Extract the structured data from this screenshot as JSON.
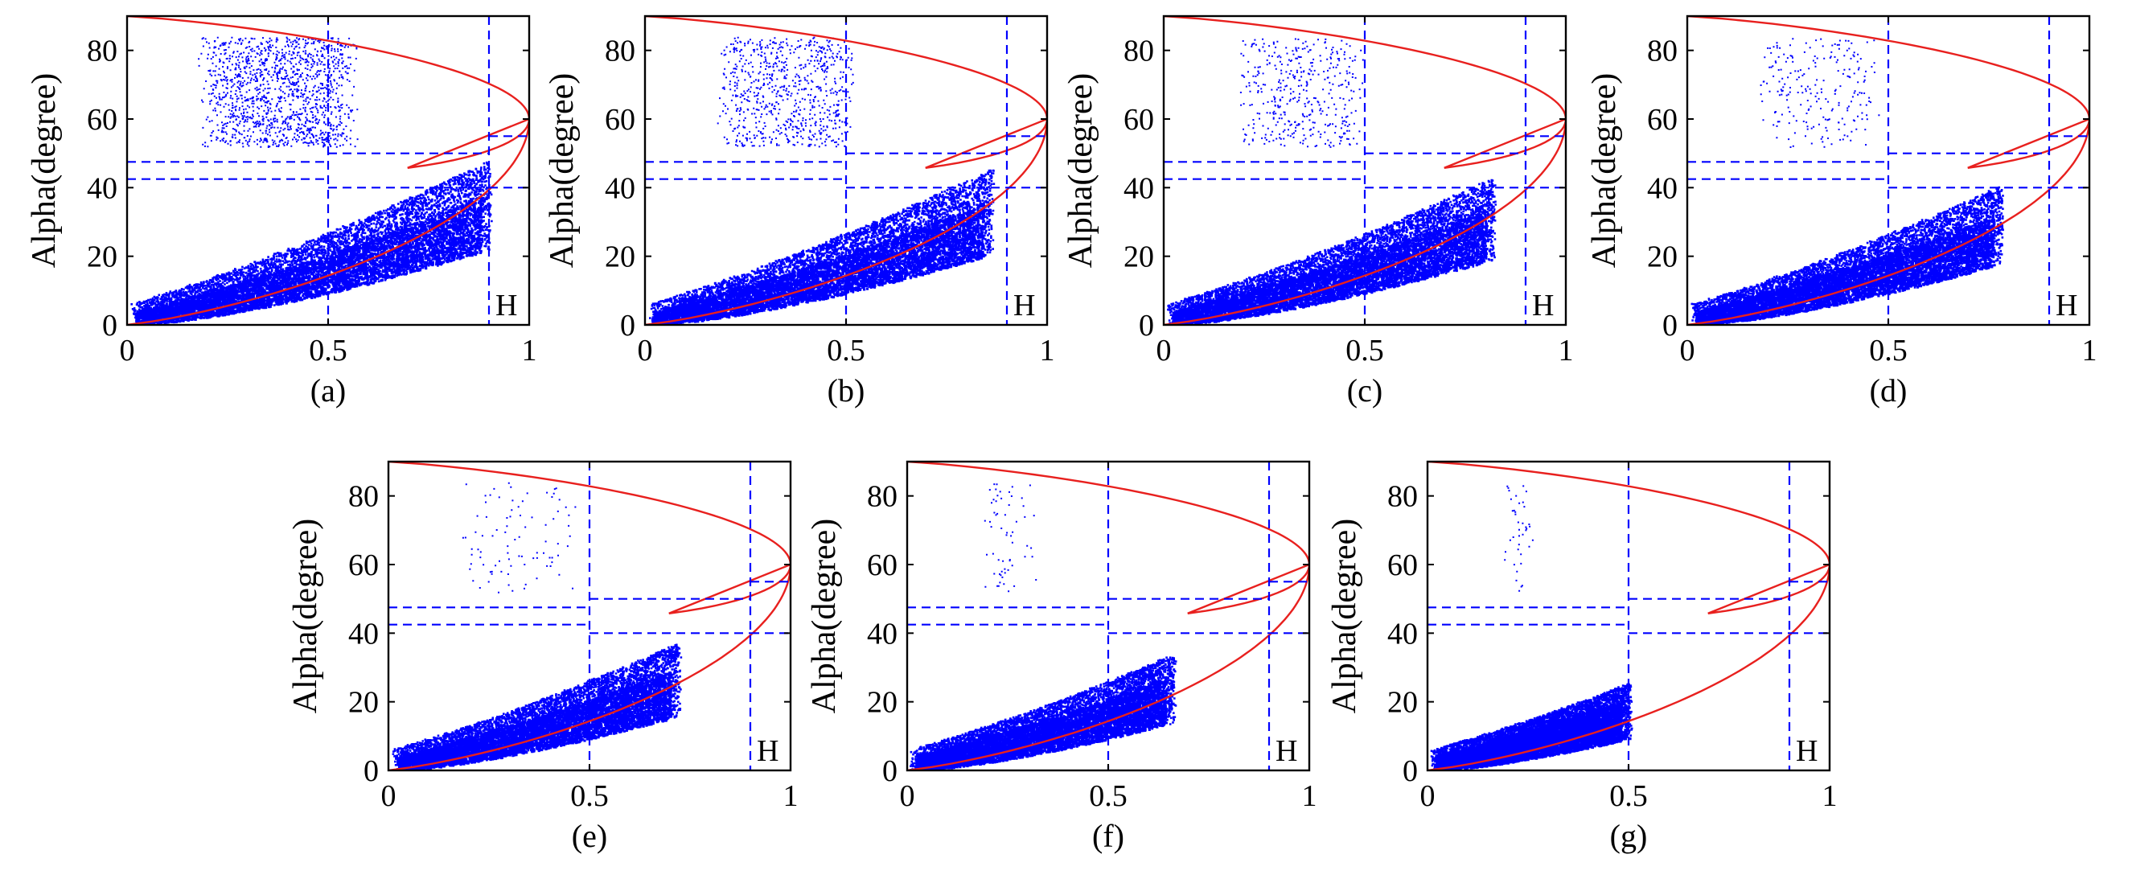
{
  "figure": {
    "title": ""
  },
  "colors": {
    "points": "#0000ff",
    "boundary": "#e8201e",
    "guides": "#0000ff",
    "axis": "#000000"
  },
  "chart_data": [
    {
      "label": "(a)",
      "type": "scatter",
      "xlabel": "",
      "ylabel": "Alpha(degree)",
      "xlim": [
        0,
        1
      ],
      "ylim": [
        0,
        90
      ],
      "xticks": [
        "0",
        "0.5",
        "1"
      ],
      "yticks": [
        "0",
        "20",
        "40",
        "60",
        "80"
      ],
      "zone_label": "H",
      "cloud_max_entropy": 0.9,
      "upper_cluster": "dense",
      "seed": 11
    },
    {
      "label": "(b)",
      "type": "scatter",
      "xlabel": "",
      "ylabel": "Alpha(degree)",
      "xlim": [
        0,
        1
      ],
      "ylim": [
        0,
        90
      ],
      "xticks": [
        "0",
        "0.5",
        "1"
      ],
      "yticks": [
        "0",
        "20",
        "40",
        "60",
        "80"
      ],
      "zone_label": "H",
      "cloud_max_entropy": 0.86,
      "upper_cluster": "medium",
      "seed": 22
    },
    {
      "label": "(c)",
      "type": "scatter",
      "xlabel": "",
      "ylabel": "Alpha(degree)",
      "xlim": [
        0,
        1
      ],
      "ylim": [
        0,
        90
      ],
      "xticks": [
        "0",
        "0.5",
        "1"
      ],
      "yticks": [
        "0",
        "20",
        "40",
        "60",
        "80"
      ],
      "zone_label": "H",
      "cloud_max_entropy": 0.82,
      "upper_cluster": "light",
      "seed": 33
    },
    {
      "label": "(d)",
      "type": "scatter",
      "xlabel": "",
      "ylabel": "Alpha(degree)",
      "xlim": [
        0,
        1
      ],
      "ylim": [
        0,
        90
      ],
      "xticks": [
        "0",
        "0.5",
        "1"
      ],
      "yticks": [
        "0",
        "20",
        "40",
        "60",
        "80"
      ],
      "zone_label": "H",
      "cloud_max_entropy": 0.78,
      "upper_cluster": "sparse",
      "seed": 44
    },
    {
      "label": "(e)",
      "type": "scatter",
      "xlabel": "",
      "ylabel": "Alpha(degree)",
      "xlim": [
        0,
        1
      ],
      "ylim": [
        0,
        90
      ],
      "xticks": [
        "0",
        "0.5",
        "1"
      ],
      "yticks": [
        "0",
        "20",
        "40",
        "60",
        "80"
      ],
      "zone_label": "H",
      "cloud_max_entropy": 0.72,
      "upper_cluster": "very-sparse",
      "seed": 55
    },
    {
      "label": "(f)",
      "type": "scatter",
      "xlabel": "",
      "ylabel": "Alpha(degree)",
      "xlim": [
        0,
        1
      ],
      "ylim": [
        0,
        90
      ],
      "xticks": [
        "0",
        "0.5",
        "1"
      ],
      "yticks": [
        "0",
        "20",
        "40",
        "60",
        "80"
      ],
      "zone_label": "H",
      "cloud_max_entropy": 0.66,
      "upper_cluster": "few",
      "seed": 66
    },
    {
      "label": "(g)",
      "type": "scatter",
      "xlabel": "",
      "ylabel": "Alpha(degree)",
      "xlim": [
        0,
        1
      ],
      "ylim": [
        0,
        90
      ],
      "xticks": [
        "0",
        "0.5",
        "1"
      ],
      "yticks": [
        "0",
        "20",
        "40",
        "60",
        "80"
      ],
      "zone_label": "H",
      "cloud_max_entropy": 0.5,
      "upper_cluster": "tiny",
      "seed": 77
    }
  ],
  "zone_boundaries": {
    "entropy_lines": [
      0.5,
      0.9
    ],
    "alpha_lines_left": [
      42.5,
      47.5
    ],
    "alpha_lines_mid": [
      40,
      50
    ],
    "alpha_lines_right": [
      40,
      55
    ]
  }
}
